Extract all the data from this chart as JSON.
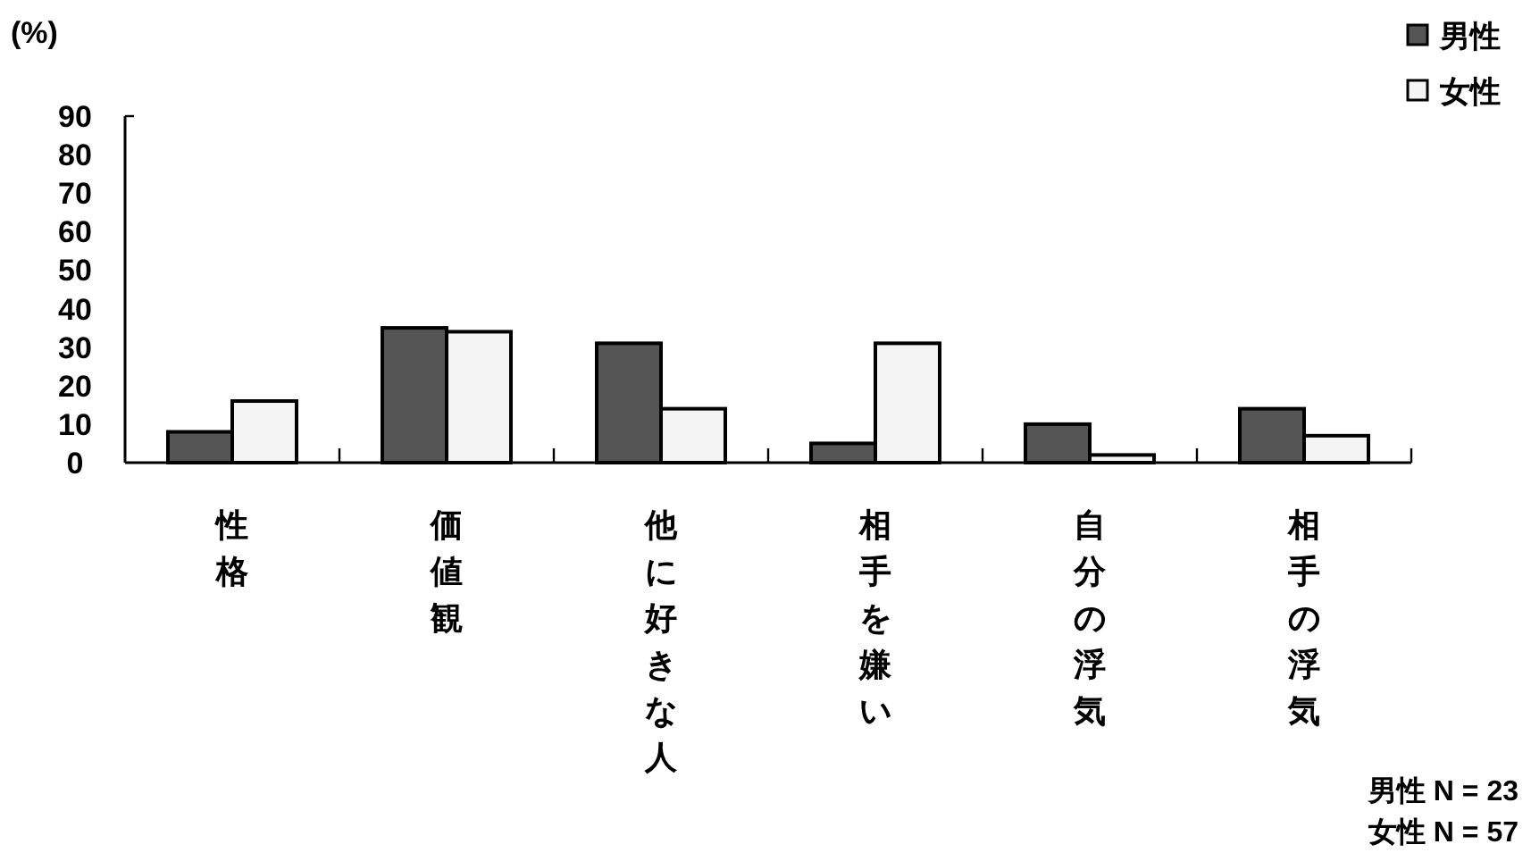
{
  "chart_data": {
    "type": "bar",
    "ylabel": "(%)",
    "categories": [
      "性格",
      "価値観",
      "他に好きな人",
      "相手を嫌い",
      "自分の浮気",
      "相手の浮気"
    ],
    "series": [
      {
        "name": "男性",
        "color": "#555555",
        "values": [
          8,
          35,
          31,
          5,
          10,
          14
        ]
      },
      {
        "name": "女性",
        "color": "#f4f4f4",
        "values": [
          16,
          34,
          14,
          31,
          2,
          7
        ]
      }
    ],
    "ylim": [
      0,
      90
    ],
    "yticks": [
      0,
      10,
      20,
      30,
      40,
      50,
      60,
      70,
      80,
      90
    ],
    "grid": false,
    "legend": "top right",
    "annotations": [
      "男性 N = 23",
      "女性 N = 57"
    ]
  }
}
